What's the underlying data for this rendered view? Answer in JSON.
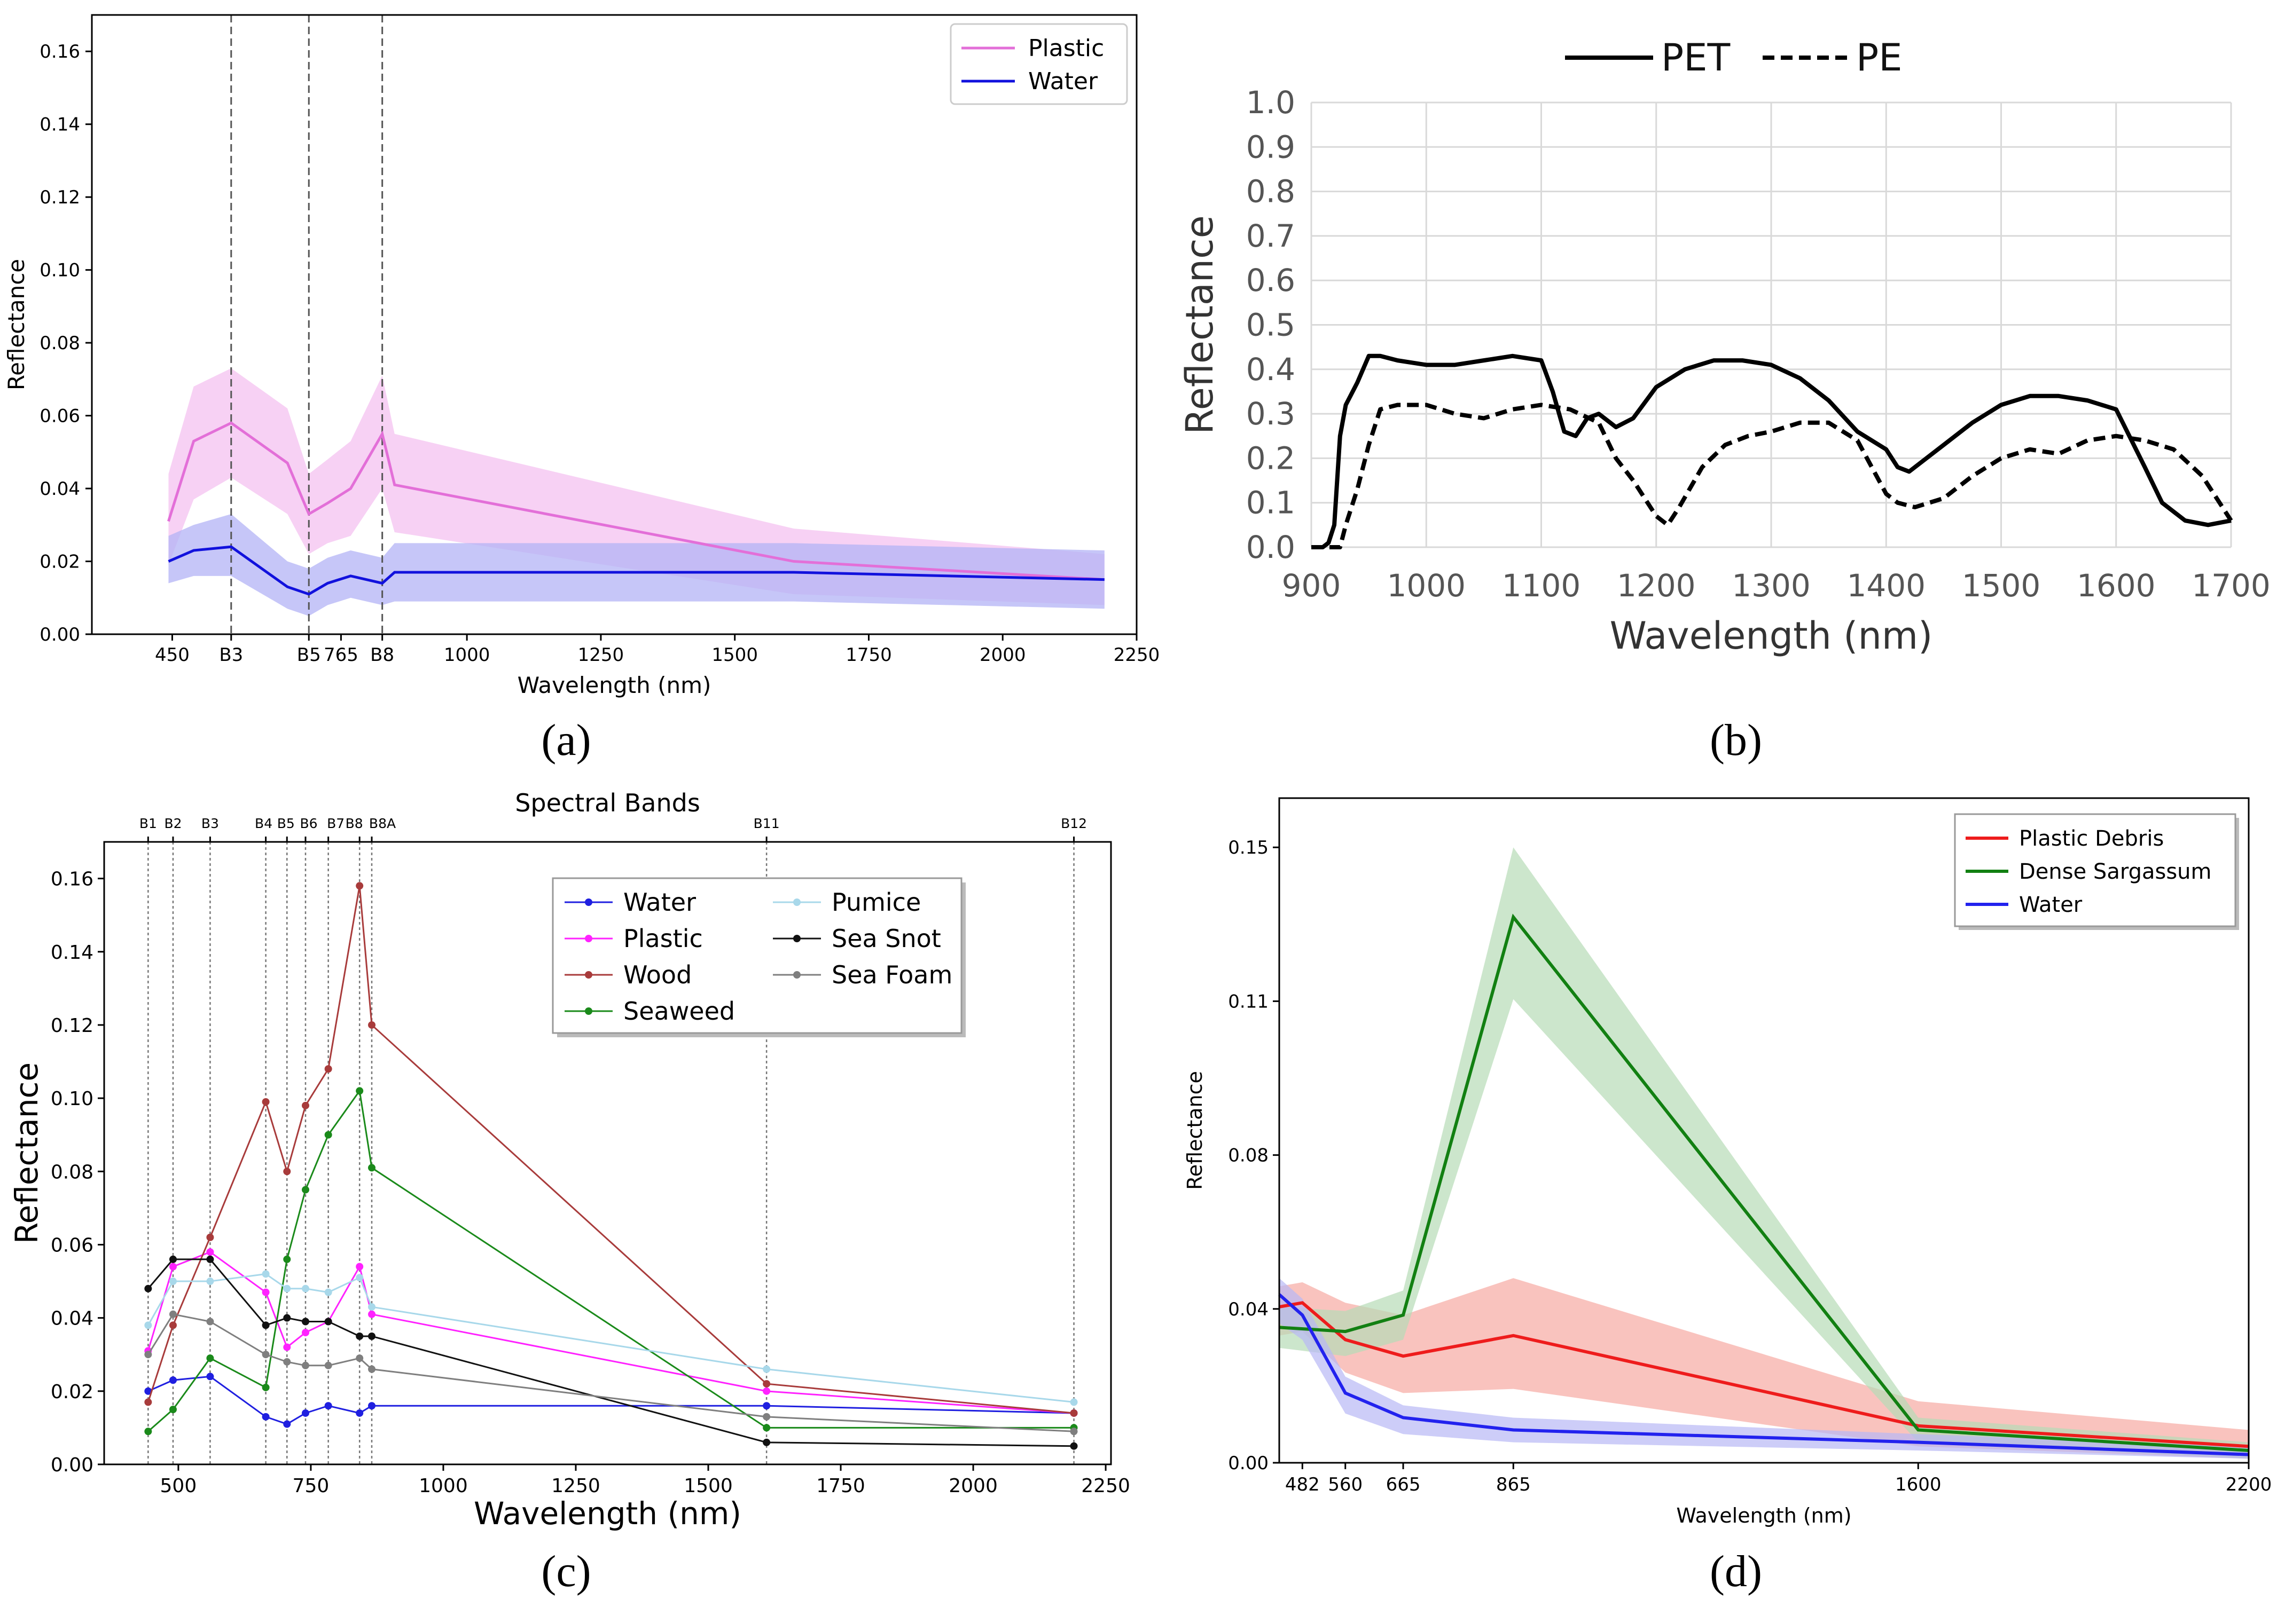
{
  "chart_data": [
    {
      "id": "a",
      "type": "line",
      "caption": "(a)",
      "title": "",
      "xlabel": "Wavelength (nm)",
      "ylabel": "Reflectance",
      "xlim": [
        300,
        2250
      ],
      "ylim": [
        0,
        0.17
      ],
      "xticks": [
        {
          "v": 450,
          "label": "450"
        },
        {
          "v": 560,
          "label": "B3"
        },
        {
          "v": 705,
          "label": "B5"
        },
        {
          "v": 765,
          "label": "765"
        },
        {
          "v": 842,
          "label": "B8"
        },
        {
          "v": 1000,
          "label": "1000"
        },
        {
          "v": 1250,
          "label": "1250"
        },
        {
          "v": 1500,
          "label": "1500"
        },
        {
          "v": 1750,
          "label": "1750"
        },
        {
          "v": 2000,
          "label": "2000"
        },
        {
          "v": 2250,
          "label": "2250"
        }
      ],
      "yticks": [
        0.0,
        0.02,
        0.04,
        0.06,
        0.08,
        0.1,
        0.12,
        0.14,
        0.16
      ],
      "ytick_labels": [
        "0.00",
        "0.02",
        "0.04",
        "0.06",
        "0.08",
        "0.10",
        "0.12",
        "0.14",
        "0.16"
      ],
      "vlines": [
        560,
        705,
        842
      ],
      "legend_position": "top-right",
      "series": [
        {
          "name": "Plastic",
          "color": "#e36fd8",
          "fill": "#f4c2f0",
          "x": [
            443,
            490,
            560,
            665,
            705,
            740,
            783,
            842,
            865,
            1610,
            2190
          ],
          "y": [
            0.031,
            0.053,
            0.058,
            0.047,
            0.033,
            0.036,
            0.04,
            0.055,
            0.041,
            0.02,
            0.015
          ],
          "lo": [
            0.019,
            0.037,
            0.043,
            0.033,
            0.022,
            0.025,
            0.027,
            0.04,
            0.028,
            0.011,
            0.008
          ],
          "hi": [
            0.044,
            0.068,
            0.073,
            0.062,
            0.044,
            0.048,
            0.053,
            0.071,
            0.055,
            0.029,
            0.022
          ]
        },
        {
          "name": "Water",
          "color": "#1111dd",
          "fill": "#b3b3f5",
          "x": [
            443,
            490,
            560,
            665,
            705,
            740,
            783,
            842,
            865,
            1610,
            2190
          ],
          "y": [
            0.02,
            0.023,
            0.024,
            0.013,
            0.011,
            0.014,
            0.016,
            0.014,
            0.017,
            0.017,
            0.015
          ],
          "lo": [
            0.014,
            0.016,
            0.016,
            0.007,
            0.005,
            0.008,
            0.01,
            0.008,
            0.009,
            0.009,
            0.007
          ],
          "hi": [
            0.027,
            0.03,
            0.033,
            0.02,
            0.018,
            0.021,
            0.023,
            0.021,
            0.025,
            0.025,
            0.023
          ]
        }
      ]
    },
    {
      "id": "b",
      "type": "line",
      "caption": "(b)",
      "title": "",
      "xlabel": "Wavelength (nm)",
      "ylabel": "Reflectance",
      "xlim": [
        900,
        1700
      ],
      "ylim": [
        0,
        1.0
      ],
      "xticks": [
        900,
        1000,
        1100,
        1200,
        1300,
        1400,
        1500,
        1600,
        1700
      ],
      "yticks": [
        0.0,
        0.1,
        0.2,
        0.3,
        0.4,
        0.5,
        0.6,
        0.7,
        0.8,
        0.9,
        1.0
      ],
      "ytick_labels": [
        "0.0",
        "0.1",
        "0.2",
        "0.3",
        "0.4",
        "0.5",
        "0.6",
        "0.7",
        "0.8",
        "0.9",
        "1.0"
      ],
      "grid": true,
      "legend_position": "top-center",
      "series": [
        {
          "name": "PET",
          "style": "solid",
          "color": "#000000",
          "x": [
            900,
            910,
            915,
            920,
            925,
            930,
            940,
            950,
            960,
            975,
            1000,
            1025,
            1050,
            1075,
            1100,
            1110,
            1120,
            1130,
            1140,
            1150,
            1165,
            1180,
            1200,
            1225,
            1250,
            1275,
            1300,
            1325,
            1350,
            1375,
            1400,
            1410,
            1420,
            1450,
            1475,
            1500,
            1525,
            1550,
            1575,
            1600,
            1625,
            1640,
            1660,
            1680,
            1700
          ],
          "y": [
            0.0,
            0.0,
            0.01,
            0.05,
            0.25,
            0.32,
            0.37,
            0.43,
            0.43,
            0.42,
            0.41,
            0.41,
            0.42,
            0.43,
            0.42,
            0.35,
            0.26,
            0.25,
            0.29,
            0.3,
            0.27,
            0.29,
            0.36,
            0.4,
            0.42,
            0.42,
            0.41,
            0.38,
            0.33,
            0.26,
            0.22,
            0.18,
            0.17,
            0.23,
            0.28,
            0.32,
            0.34,
            0.34,
            0.33,
            0.31,
            0.18,
            0.1,
            0.06,
            0.05,
            0.06
          ]
        },
        {
          "name": "PE",
          "style": "dashed",
          "color": "#000000",
          "x": [
            900,
            925,
            930,
            940,
            950,
            960,
            975,
            1000,
            1025,
            1050,
            1075,
            1100,
            1125,
            1150,
            1165,
            1180,
            1200,
            1210,
            1220,
            1240,
            1260,
            1280,
            1300,
            1325,
            1350,
            1375,
            1400,
            1410,
            1425,
            1450,
            1475,
            1500,
            1525,
            1550,
            1575,
            1600,
            1625,
            1650,
            1675,
            1700
          ],
          "y": [
            0.0,
            0.0,
            0.05,
            0.13,
            0.23,
            0.31,
            0.32,
            0.32,
            0.3,
            0.29,
            0.31,
            0.32,
            0.31,
            0.28,
            0.2,
            0.15,
            0.07,
            0.05,
            0.09,
            0.18,
            0.23,
            0.25,
            0.26,
            0.28,
            0.28,
            0.24,
            0.12,
            0.1,
            0.09,
            0.11,
            0.16,
            0.2,
            0.22,
            0.21,
            0.24,
            0.25,
            0.24,
            0.22,
            0.16,
            0.06
          ]
        }
      ]
    },
    {
      "id": "c",
      "type": "line",
      "caption": "(c)",
      "title": "Spectral Bands",
      "xlabel": "Wavelength (nm)",
      "ylabel": "Reflectance",
      "xlim": [
        360,
        2260
      ],
      "ylim": [
        0,
        0.17
      ],
      "xticks": [
        500,
        750,
        1000,
        1250,
        1500,
        1750,
        2000,
        2250
      ],
      "yticks": [
        0.0,
        0.02,
        0.04,
        0.06,
        0.08,
        0.1,
        0.12,
        0.14,
        0.16
      ],
      "ytick_labels": [
        "0.00",
        "0.02",
        "0.04",
        "0.06",
        "0.08",
        "0.10",
        "0.12",
        "0.14",
        "0.16"
      ],
      "bands": [
        {
          "v": 443,
          "label": "B1"
        },
        {
          "v": 490,
          "label": "B2"
        },
        {
          "v": 560,
          "label": "B3"
        },
        {
          "v": 665,
          "label": "B4"
        },
        {
          "v": 705,
          "label": "B5"
        },
        {
          "v": 740,
          "label": "B6"
        },
        {
          "v": 783,
          "label": "B7"
        },
        {
          "v": 842,
          "label": "B8"
        },
        {
          "v": 865,
          "label": "B8A"
        },
        {
          "v": 1610,
          "label": "B11"
        },
        {
          "v": 2190,
          "label": "B12"
        }
      ],
      "x": [
        443,
        490,
        560,
        665,
        705,
        740,
        783,
        842,
        865,
        1610,
        2190
      ],
      "legend_position": "top-right",
      "series": [
        {
          "name": "Water",
          "color": "#1f1fe0",
          "y": [
            0.02,
            0.023,
            0.024,
            0.013,
            0.011,
            0.014,
            0.016,
            0.014,
            0.016,
            0.016,
            0.014
          ]
        },
        {
          "name": "Plastic",
          "color": "#ff22ff",
          "y": [
            0.031,
            0.054,
            0.058,
            0.047,
            0.032,
            0.036,
            0.039,
            0.054,
            0.041,
            0.02,
            0.014
          ]
        },
        {
          "name": "Wood",
          "color": "#a83b3b",
          "y": [
            0.017,
            0.038,
            0.062,
            0.099,
            0.08,
            0.098,
            0.108,
            0.158,
            0.12,
            0.022,
            0.014
          ]
        },
        {
          "name": "Seaweed",
          "color": "#1a8a1a",
          "y": [
            0.009,
            0.015,
            0.029,
            0.021,
            0.056,
            0.075,
            0.09,
            0.102,
            0.081,
            0.01,
            0.01
          ]
        },
        {
          "name": "Pumice",
          "color": "#a8d8ea",
          "y": [
            0.038,
            0.05,
            0.05,
            0.052,
            0.048,
            0.048,
            0.047,
            0.051,
            0.043,
            0.026,
            0.017
          ]
        },
        {
          "name": "Sea Snot",
          "color": "#111111",
          "y": [
            0.048,
            0.056,
            0.056,
            0.038,
            0.04,
            0.039,
            0.039,
            0.035,
            0.035,
            0.006,
            0.005
          ]
        },
        {
          "name": "Sea Foam",
          "color": "#7f7f7f",
          "y": [
            0.03,
            0.041,
            0.039,
            0.03,
            0.028,
            0.027,
            0.027,
            0.029,
            0.026,
            0.013,
            0.009
          ]
        }
      ]
    },
    {
      "id": "d",
      "type": "line",
      "caption": "(d)",
      "title": "",
      "xlabel": "Wavelength (nm)",
      "ylabel": "Reflectance",
      "xlim": [
        440,
        2200
      ],
      "ylim": [
        0,
        0.162
      ],
      "xticks": [
        482,
        560,
        665,
        865,
        1600,
        2200
      ],
      "yticks": [
        0.0,
        0.04,
        0.08,
        0.11,
        0.15
      ],
      "ytick_labels": [
        "0.00",
        "0.04",
        "0.08",
        "0.11",
        "0.15"
      ],
      "ytick_values": [
        0.0,
        0.0375,
        0.075,
        0.1125,
        0.15
      ],
      "legend_position": "top-right",
      "series": [
        {
          "name": "Plastic Debris",
          "color": "#ee1c1c",
          "fill": "#f7a9a2",
          "x": [
            440,
            482,
            560,
            665,
            865,
            1600,
            2200
          ],
          "y": [
            0.038,
            0.039,
            0.03,
            0.026,
            0.031,
            0.009,
            0.004
          ],
          "lo": [
            0.031,
            0.032,
            0.022,
            0.017,
            0.018,
            0.004,
            0.001
          ],
          "hi": [
            0.043,
            0.044,
            0.039,
            0.036,
            0.045,
            0.015,
            0.008
          ]
        },
        {
          "name": "Dense Sargassum",
          "color": "#128012",
          "fill": "#b6dbb6",
          "x": [
            440,
            560,
            665,
            865,
            1600,
            2200
          ],
          "y": [
            0.033,
            0.032,
            0.036,
            0.133,
            0.008,
            0.003
          ],
          "lo": [
            0.028,
            0.026,
            0.03,
            0.113,
            0.005,
            0.001
          ],
          "hi": [
            0.038,
            0.037,
            0.042,
            0.15,
            0.011,
            0.005
          ]
        },
        {
          "name": "Water",
          "color": "#2222ee",
          "fill": "#b8b8f5",
          "x": [
            440,
            482,
            560,
            665,
            865,
            1600,
            2200
          ],
          "y": [
            0.041,
            0.036,
            0.017,
            0.011,
            0.008,
            0.005,
            0.002
          ],
          "lo": [
            0.034,
            0.03,
            0.012,
            0.007,
            0.005,
            0.003,
            0.001
          ],
          "hi": [
            0.045,
            0.04,
            0.021,
            0.014,
            0.011,
            0.007,
            0.004
          ]
        }
      ]
    }
  ]
}
